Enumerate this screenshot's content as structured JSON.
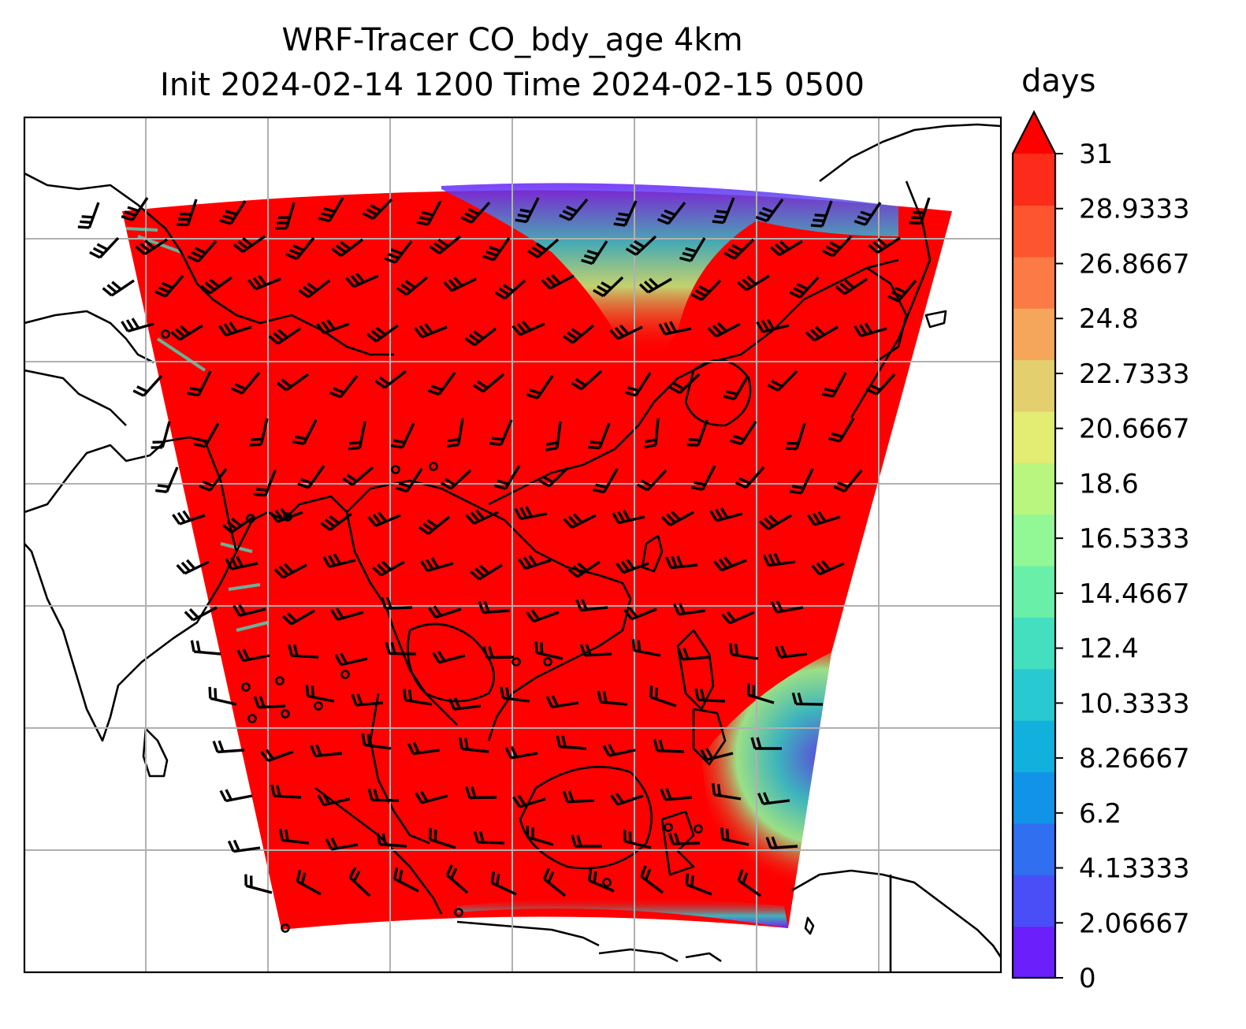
{
  "title": {
    "line1": "WRF-Tracer CO_bdy_age 4km",
    "line2": "Init 2024-02-14 1200 Time 2024-02-15 0500"
  },
  "colorbar": {
    "units": "days",
    "extend": "max",
    "tick_labels": [
      "0",
      "2.06667",
      "4.13333",
      "6.2",
      "8.26667",
      "10.3333",
      "12.4",
      "14.4667",
      "16.5333",
      "18.6",
      "20.6667",
      "22.7333",
      "24.8",
      "26.8667",
      "28.9333",
      "31"
    ],
    "colors": [
      "#6a1ffb",
      "#4a4ef6",
      "#2f6ff0",
      "#1193e8",
      "#11b0dd",
      "#28c9d1",
      "#43dfbf",
      "#6aefa8",
      "#91f895",
      "#b9f680",
      "#e3ec73",
      "#e3cf6e",
      "#f5a65b",
      "#fb7a46",
      "#fd5530",
      "#fd2b19"
    ],
    "over_color": "#fe0000"
  },
  "map": {
    "field_color": "#fe0000",
    "coast_color": "#000000",
    "grid_color": "#b0b0b0"
  }
}
